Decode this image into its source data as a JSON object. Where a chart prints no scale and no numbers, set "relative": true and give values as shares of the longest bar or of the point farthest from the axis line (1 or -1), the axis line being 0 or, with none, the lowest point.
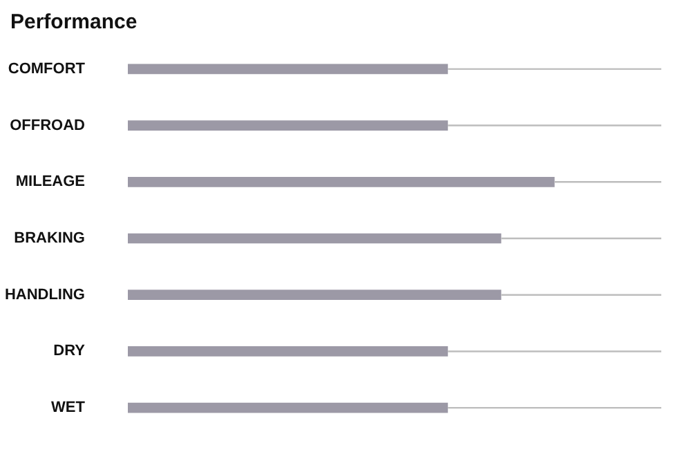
{
  "chart_data": {
    "type": "bar",
    "title": "Performance",
    "orientation": "horizontal",
    "stacked": true,
    "relative": true,
    "categories": [
      "COMFORT",
      "OFFROAD",
      "MILEAGE",
      "BRAKING",
      "HANDLING",
      "DRY",
      "WET"
    ],
    "series": [
      {
        "color": "#9c99a6",
        "values": [
          0.6,
          0.6,
          0.8,
          0.7,
          0.7,
          0.6,
          0.6
        ]
      },
      {
        "color": "#bdbdbd",
        "values": [
          0.4,
          0.4,
          0.2,
          0.3,
          0.3,
          0.4,
          0.4
        ]
      }
    ]
  }
}
